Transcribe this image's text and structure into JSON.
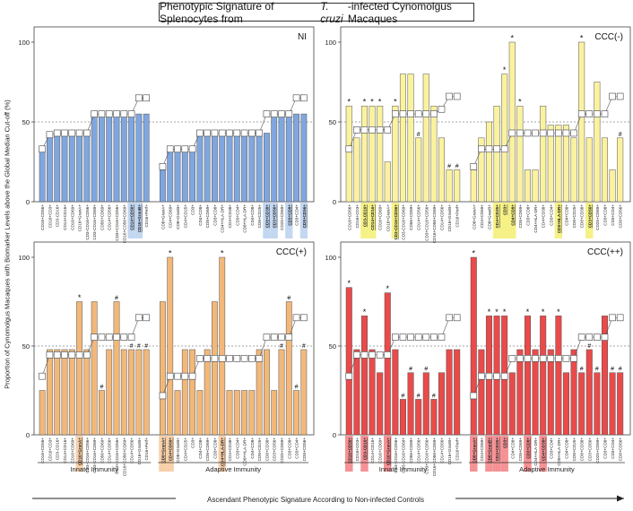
{
  "title": {
    "before": "Phenotypic Signature of Splenocytes from ",
    "italic": "T. cruzi",
    "after": "-infected Cynomolgus Macaques"
  },
  "ylabel": "Proportion of Cynomolgus Macaques with Biomarker Levels above the Global Median Cut-off (%)",
  "xlabel_innate": "Innate Immunity",
  "xlabel_adaptive": "Adaptive Immunity",
  "bottom_caption": "Ascendant Phenotypic Signature According to Non-infected Controls",
  "colors": {
    "NI": "#7fa6df",
    "CCC(-)": "#fbf2a0",
    "CCC(+)": "#f2b87a",
    "CCC(++)": "#e94a4a",
    "hl_NI": "#b8d0ee",
    "hl_CCC(-)": "#f3ee70",
    "hl_CCC(+)": "#f6c79a",
    "hl_CCC(++)": "#f37f82"
  },
  "chart_data": {
    "type": "bar",
    "ylim": [
      0,
      100
    ],
    "yticks": [
      0,
      50,
      100
    ],
    "reference_line": 50,
    "groups": [
      "Innate Immunity",
      "Adaptive Immunity"
    ],
    "categories_innate": [
      "CD16+CD56+",
      "CD16+CD3+",
      "CD3-CD16+",
      "CD14+CD16+",
      "CD16+CD69+",
      "CD16+GranA+",
      "CD3-CD16+CD56+",
      "CD3-CD16+CD69+",
      "CD56+CD69+",
      "CD14+CD56+",
      "CD3+CD16+CD56+",
      "CD16+CD56+CD69+",
      "CD14+CD56+",
      "CD16+GranB+",
      "CD16+Perf+"
    ],
    "categories_adaptive": [
      "CD8+GranA+",
      "CD4+CD69+",
      "CD8+GranB+",
      "CD4+CD25+",
      "CD3+",
      "CD4+CD8+",
      "CD8+CD69+",
      "CD3+CD8+",
      "CD4+HLA-DR+",
      "CD4+CD38+",
      "CD3+CD4+",
      "CD8+HLA-DR+",
      "CD4+CD8+",
      "CD8+CD25+",
      "CD8+CD38+",
      "CD3+CD56+",
      "CD25+CD69+",
      "CD3+CD8+",
      "CD3+CD4+",
      "CD8+CD56+"
    ],
    "panels": [
      {
        "name": "NI",
        "innate": [
          33,
          42,
          43,
          43,
          43,
          43,
          43,
          55,
          55,
          55,
          55,
          55,
          55,
          55,
          55
        ],
        "adaptive": [
          22,
          33,
          33,
          33,
          33,
          43,
          43,
          43,
          43,
          43,
          43,
          43,
          43,
          43,
          43,
          55,
          55,
          55,
          55,
          55
        ],
        "trend_innate": [
          33,
          42,
          43,
          43,
          43,
          43,
          43,
          55,
          55,
          55,
          55,
          55,
          55,
          65,
          65
        ],
        "trend_adaptive": [
          22,
          33,
          33,
          33,
          33,
          43,
          43,
          43,
          43,
          43,
          43,
          43,
          43,
          43,
          55,
          55,
          55,
          55,
          65,
          65
        ],
        "stars_innate": [],
        "hash_innate": [],
        "stars_adaptive": [],
        "hash_adaptive": [],
        "hl_innate": [
          12,
          13
        ],
        "hl_adaptive": [
          14,
          15,
          17,
          19
        ]
      },
      {
        "name": "CCC(-)",
        "innate": [
          60,
          40,
          60,
          60,
          60,
          25,
          60,
          80,
          80,
          40,
          80,
          60,
          40,
          20,
          20
        ],
        "adaptive": [
          20,
          40,
          50,
          60,
          80,
          100,
          60,
          20,
          20,
          60,
          48,
          48,
          48,
          40,
          100,
          40,
          75,
          40,
          20,
          40
        ],
        "trend_innate": [
          33,
          45,
          45,
          45,
          45,
          45,
          55,
          55,
          55,
          55,
          55,
          55,
          58,
          66,
          66
        ],
        "trend_adaptive": [
          22,
          33,
          33,
          33,
          33,
          43,
          43,
          43,
          43,
          43,
          43,
          43,
          43,
          43,
          55,
          55,
          55,
          55,
          66,
          66
        ],
        "stars_innate": [
          0,
          2,
          3,
          4,
          6
        ],
        "hash_innate": [
          9,
          13,
          14
        ],
        "stars_adaptive": [
          4,
          5,
          6,
          14
        ],
        "hash_adaptive": [
          13,
          19
        ],
        "hl_innate": [
          2,
          3,
          6
        ],
        "hl_adaptive": [
          3,
          4,
          5,
          11,
          15
        ]
      },
      {
        "name": "CCC(+)",
        "innate": [
          25,
          48,
          48,
          48,
          48,
          75,
          48,
          75,
          25,
          48,
          75,
          48,
          48,
          48,
          48
        ],
        "adaptive": [
          75,
          100,
          25,
          48,
          48,
          25,
          48,
          75,
          100,
          25,
          25,
          25,
          25,
          48,
          48,
          25,
          48,
          75,
          25,
          48
        ],
        "trend_innate": [
          33,
          45,
          45,
          45,
          45,
          45,
          45,
          55,
          55,
          55,
          55,
          55,
          55,
          66,
          66
        ],
        "trend_adaptive": [
          22,
          33,
          33,
          33,
          33,
          43,
          43,
          43,
          43,
          43,
          43,
          43,
          43,
          43,
          55,
          55,
          55,
          55,
          66,
          66
        ],
        "stars_innate": [
          5
        ],
        "hash_innate": [
          8,
          10,
          12,
          13,
          14
        ],
        "stars_adaptive": [
          1,
          8
        ],
        "hash_adaptive": [
          16,
          17,
          18,
          19
        ],
        "hl_innate": [
          5
        ],
        "hl_adaptive": [
          0,
          1,
          8
        ]
      },
      {
        "name": "CCC(++)",
        "innate": [
          83,
          48,
          67,
          48,
          35,
          80,
          48,
          20,
          35,
          20,
          35,
          20,
          35,
          48,
          48
        ],
        "adaptive": [
          100,
          48,
          67,
          67,
          67,
          35,
          48,
          67,
          48,
          67,
          48,
          67,
          35,
          48,
          35,
          48,
          35,
          67,
          35,
          35
        ],
        "trend_innate": [
          33,
          45,
          45,
          45,
          45,
          45,
          55,
          55,
          55,
          55,
          55,
          55,
          55,
          66,
          66
        ],
        "trend_adaptive": [
          22,
          33,
          33,
          33,
          33,
          43,
          43,
          43,
          43,
          43,
          43,
          43,
          43,
          43,
          55,
          55,
          55,
          55,
          66,
          66
        ],
        "stars_innate": [
          0,
          2,
          5
        ],
        "hash_innate": [
          7,
          8,
          9,
          10,
          11
        ],
        "stars_adaptive": [
          0,
          2,
          3,
          4,
          7,
          9,
          11
        ],
        "hash_adaptive": [
          14,
          15,
          16,
          18,
          19
        ],
        "hl_innate": [
          0,
          2,
          5
        ],
        "hl_adaptive": [
          0,
          2,
          3,
          4,
          7,
          9
        ]
      }
    ]
  }
}
